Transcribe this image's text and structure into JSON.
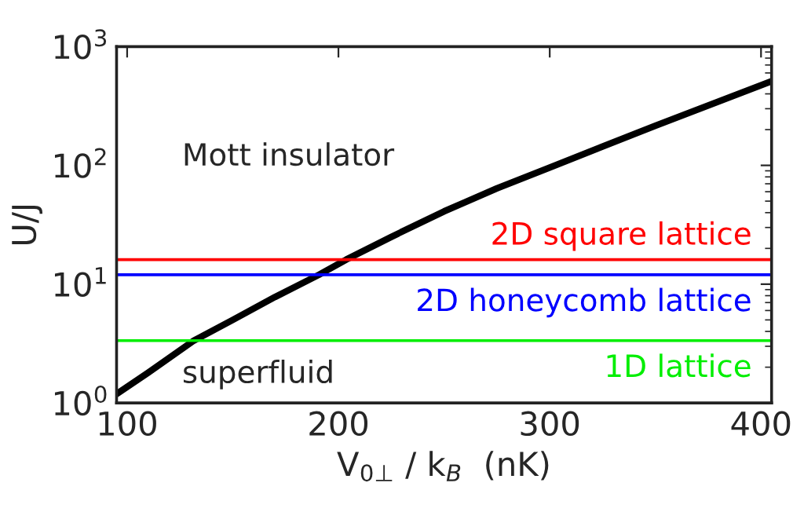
{
  "chart_data": {
    "type": "line",
    "xlabel": "V$_{0⊥}$ / k$_{B}$  (nK)",
    "ylabel": "U/J",
    "log": "y",
    "xlim": [
      95,
      405
    ],
    "xticks": [
      100,
      200,
      300,
      400
    ],
    "ylim": [
      1,
      1000
    ],
    "yticks": [
      {
        "value": 1,
        "label": "10$^{0}$"
      },
      {
        "value": 10,
        "label": "10$^{1}$"
      },
      {
        "value": 100,
        "label": "10$^{2}$"
      },
      {
        "value": 1000,
        "label": "10$^{3}$"
      }
    ],
    "grid": false,
    "legend": false,
    "marker": "none",
    "line_style": "solid",
    "series": [
      {
        "color": "#000000",
        "x": [
          95,
          110,
          131.6,
          150,
          170,
          190.8,
          203.7,
          225,
          250,
          275,
          300,
          350,
          405
        ],
        "values": [
          1.19,
          1.8,
          3.35,
          5.0,
          7.8,
          12.0,
          16.1,
          25,
          41,
          64,
          96,
          216,
          511
        ]
      }
    ],
    "ref_lines": [
      {
        "axis": "y",
        "value": 16.1,
        "label": "2D square lattice",
        "color": "#ff0000"
      },
      {
        "axis": "y",
        "value": 12.0,
        "label": "2D honeycomb lattice",
        "color": "#0000ff"
      },
      {
        "axis": "y",
        "value": 3.35,
        "label": "1D lattice",
        "color": "#00ee00"
      }
    ],
    "annotations": [
      "Mott insulator",
      "superfluid"
    ]
  }
}
